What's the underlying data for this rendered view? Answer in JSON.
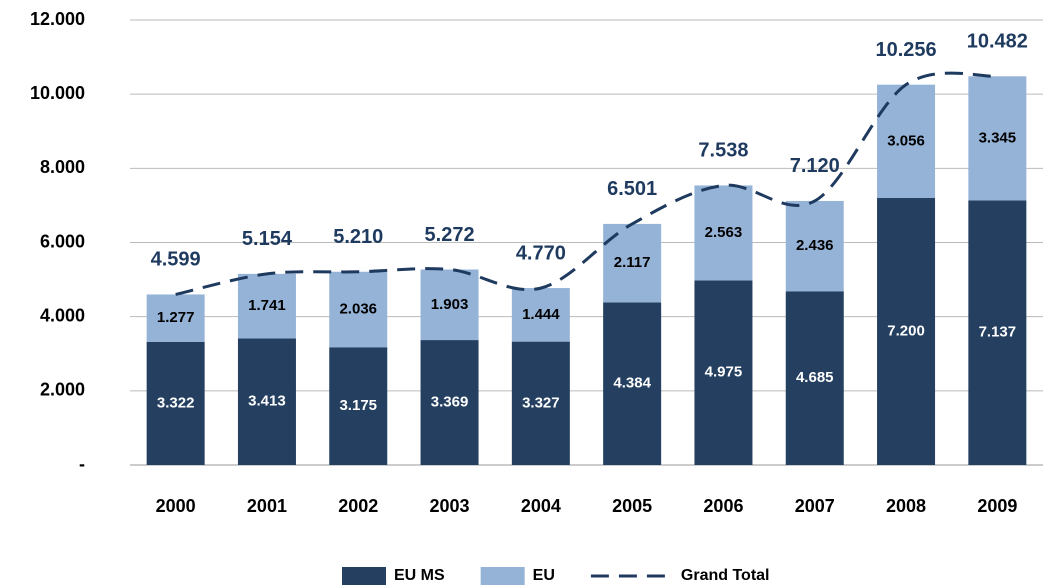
{
  "chart_data": {
    "type": "bar",
    "stacked": true,
    "categories": [
      "2000",
      "2001",
      "2002",
      "2003",
      "2004",
      "2005",
      "2006",
      "2007",
      "2008",
      "2009"
    ],
    "series": [
      {
        "name": "EU MS",
        "color": "#243f60",
        "values": [
          3322,
          3413,
          3175,
          3369,
          3327,
          4384,
          4975,
          4685,
          7200,
          7137
        ],
        "value_labels": [
          "3.322",
          "3.413",
          "3.175",
          "3.369",
          "3.327",
          "4.384",
          "4.975",
          "4.685",
          "7.200",
          "7.137"
        ]
      },
      {
        "name": "EU",
        "color": "#95b3d7",
        "values": [
          1277,
          1741,
          2036,
          1903,
          1444,
          2117,
          2563,
          2436,
          3056,
          3345
        ],
        "value_labels": [
          "1.277",
          "1.741",
          "2.036",
          "1.903",
          "1.444",
          "2.117",
          "2.563",
          "2.436",
          "3.056",
          "3.345"
        ]
      },
      {
        "name": "Grand Total",
        "type": "line",
        "color": "#1f3a5f",
        "dashed": true,
        "smooth": true,
        "values": [
          4599,
          5154,
          5210,
          5272,
          4770,
          6501,
          7538,
          7120,
          10256,
          10482
        ],
        "value_labels": [
          "4.599",
          "5.154",
          "5.210",
          "5.272",
          "4.770",
          "6.501",
          "7.538",
          "7.120",
          "10.256",
          "10.482"
        ]
      }
    ],
    "ylim": [
      0,
      12000
    ],
    "yticks": [
      {
        "value": 0,
        "label": "-"
      },
      {
        "value": 2000,
        "label": "2.000"
      },
      {
        "value": 4000,
        "label": "4.000"
      },
      {
        "value": 6000,
        "label": "6.000"
      },
      {
        "value": 8000,
        "label": "8.000"
      },
      {
        "value": 10000,
        "label": "10.000"
      },
      {
        "value": 12000,
        "label": "12.000"
      }
    ],
    "grid": true,
    "legend": "bottom"
  }
}
